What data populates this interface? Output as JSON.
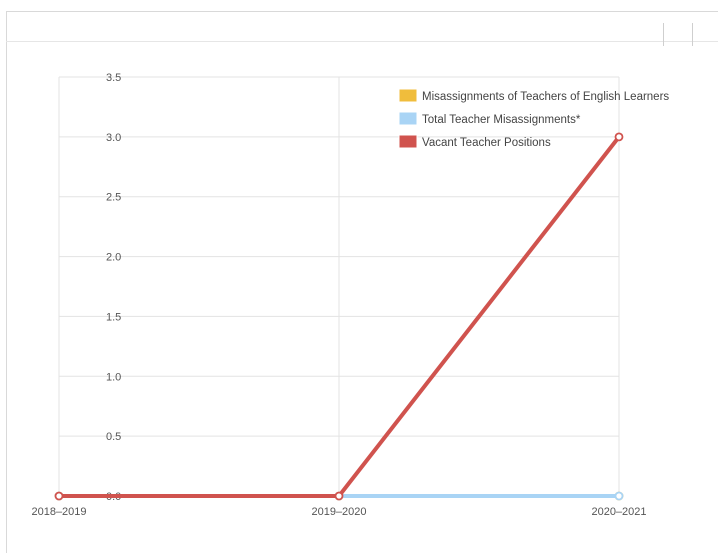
{
  "chart_data": {
    "type": "line",
    "categories": [
      "2018–2019",
      "2019–2020",
      "2020–2021"
    ],
    "ylim": [
      0,
      3.5
    ],
    "yticks": [
      "0.0",
      "0.5",
      "1.0",
      "1.5",
      "2.0",
      "2.5",
      "3.0",
      "3.5"
    ],
    "grid": true,
    "legend_position": "top-right",
    "series": [
      {
        "name": "Misassignments of Teachers of English Learners",
        "color": "#f0bd3c",
        "values": [
          0,
          0,
          0
        ]
      },
      {
        "name": "Total Teacher Misassignments*",
        "color": "#a9d4f5",
        "values": [
          0,
          0,
          0
        ]
      },
      {
        "name": "Vacant Teacher Positions",
        "color": "#d0534e",
        "values": [
          0,
          0,
          3
        ]
      }
    ]
  }
}
